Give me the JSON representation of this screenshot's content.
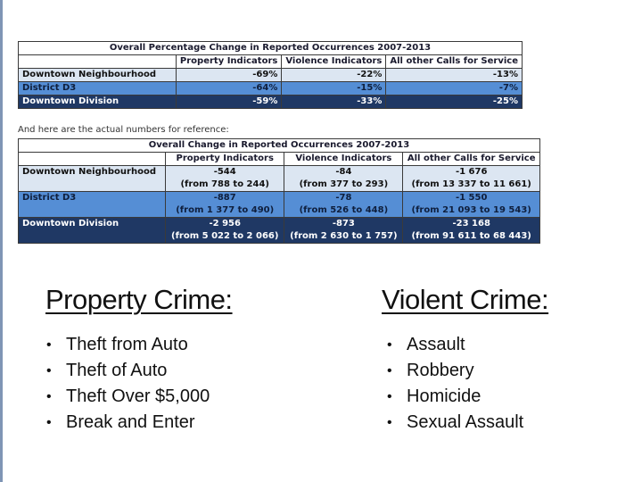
{
  "pct_table": {
    "title": "Overall Percentage Change in Reported Occurrences 2007-2013",
    "columns": [
      "",
      "Property Indicators",
      "Violence Indicators",
      "All other Calls for Service"
    ],
    "rows": [
      {
        "label": "Downtown Neighbourhood",
        "property": "-69%",
        "violence": "-22%",
        "other": "-13%"
      },
      {
        "label": "District D3",
        "property": "-64%",
        "violence": "-15%",
        "other": "-7%"
      },
      {
        "label": "Downtown Division",
        "property": "-59%",
        "violence": "-33%",
        "other": "-25%"
      }
    ]
  },
  "note": "And here are the actual numbers for reference:",
  "num_table": {
    "title": "Overall Change in Reported Occurrences 2007-2013",
    "columns": [
      "",
      "Property Indicators",
      "Violence Indicators",
      "All other Calls for Service"
    ],
    "rows": [
      {
        "label": "Downtown Neighbourhood",
        "property": {
          "change": "-544",
          "range": "(from 788 to 244)"
        },
        "violence": {
          "change": "-84",
          "range": "(from 377 to 293)"
        },
        "other": {
          "change": "-1 676",
          "range": "(from 13 337 to 11 661)"
        }
      },
      {
        "label": "District D3",
        "property": {
          "change": "-887",
          "range": "(from 1 377 to 490)"
        },
        "violence": {
          "change": "-78",
          "range": "(from 526 to 448)"
        },
        "other": {
          "change": "-1 550",
          "range": "(from 21 093 to 19 543)"
        }
      },
      {
        "label": "Downtown Division",
        "property": {
          "change": "-2 956",
          "range": "(from 5 022 to 2 066)"
        },
        "violence": {
          "change": "-873",
          "range": "(from 2 630 to 1 757)"
        },
        "other": {
          "change": "-23 168",
          "range": "(from 91 611 to 68 443)"
        }
      }
    ]
  },
  "property_crime": {
    "heading": "Property Crime:",
    "items": [
      "Theft from Auto",
      "Theft of Auto",
      "Theft Over $5,000",
      "Break and Enter"
    ]
  },
  "violent_crime": {
    "heading": "Violent Crime:",
    "items": [
      "Assault",
      "Robbery",
      "Homicide",
      "Sexual Assault"
    ]
  },
  "bullet": "•",
  "colors": {
    "row_light": "#dce6f2",
    "row_mid": "#558ed5",
    "row_dark": "#1f3864"
  }
}
